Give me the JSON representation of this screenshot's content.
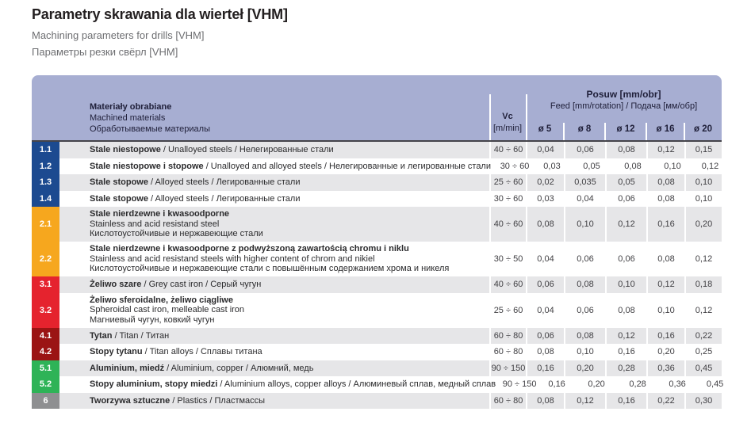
{
  "page": {
    "title": "Parametry skrawania dla wierteł [VHM]",
    "subtitle_en": "Machining parameters for drills [VHM]",
    "subtitle_ru": "Параметры резки свёрл [VHM]"
  },
  "colors": {
    "header_bg": "#a7aed2",
    "stripe": "#e6e6e8",
    "header_rule": "#45444a",
    "group_colors": {
      "1": "#1c4a90",
      "2": "#f6a71e",
      "3": "#e5232e",
      "4": "#9b1414",
      "5": "#2eb357",
      "6": "#8e8f91"
    }
  },
  "table": {
    "header": {
      "materials_pl": "Materiały obrabiane",
      "materials_en": "Machined materials",
      "materials_ru": "Обработываемые материалы",
      "vc_label": "Vc",
      "vc_unit": "[m/min]",
      "posuw_title": "Posuw [mm/obr]",
      "posuw_sub": "Feed [mm/rotation] / Подача [мм/обр]",
      "diameters": [
        "ø 5",
        "ø 8",
        "ø 12",
        "ø 16",
        "ø 20"
      ]
    },
    "rows": [
      {
        "id": "1.1",
        "group": "1",
        "striped": true,
        "multiline": false,
        "pl": "Stale niestopowe",
        "en": "Unalloyed steels",
        "ru": " Нелегированные стали",
        "vc": "40 ÷ 60",
        "values": [
          "0,04",
          "0,06",
          "0,08",
          "0,12",
          "0,15"
        ]
      },
      {
        "id": "1.2",
        "group": "1",
        "striped": false,
        "multiline": false,
        "pl": "Stale niestopowe i stopowe",
        "en": "Unalloyed and alloyed steels",
        "ru": "Нелегированные и легированные стали",
        "vc": "30 ÷ 60",
        "values": [
          "0,03",
          "0,05",
          "0,08",
          "0,10",
          "0,12"
        ]
      },
      {
        "id": "1.3",
        "group": "1",
        "striped": true,
        "multiline": false,
        "pl": "Stale stopowe",
        "en": "Alloyed steels",
        "ru": "Легированные стали",
        "vc": "25 ÷ 60",
        "values": [
          "0,02",
          "0,035",
          "0,05",
          "0,08",
          "0,10"
        ]
      },
      {
        "id": "1.4",
        "group": "1",
        "striped": false,
        "multiline": false,
        "pl": "Stale stopowe",
        "en": "Alloyed steels",
        "ru": "Легированные стали",
        "vc": "30 ÷ 60",
        "values": [
          "0,03",
          "0,04",
          "0,06",
          "0,08",
          "0,10"
        ]
      },
      {
        "id": "2.1",
        "group": "2",
        "striped": true,
        "multiline": true,
        "pl": "Stale nierdzewne i kwasoodporne",
        "en": "Stainless and acid resistand steel",
        "ru": "Кислотоустойчивые и нержавеющие стали",
        "vc": "40 ÷ 60",
        "values": [
          "0,08",
          "0,10",
          "0,12",
          "0,16",
          "0,20"
        ]
      },
      {
        "id": "2.2",
        "group": "2",
        "striped": false,
        "multiline": true,
        "pl": "Stale nierdzewne i kwasoodporne z podwyższoną zawartością chromu i niklu",
        "en": "Stainless and acid resistand steels with higher content of chrom and nikiel",
        "ru": "Кислотоустойчивые и нержавеющие стали с повышённым содержанием хрома и никеля",
        "vc": "30 ÷ 50",
        "values": [
          "0,04",
          "0,06",
          "0,06",
          "0,08",
          "0,12"
        ]
      },
      {
        "id": "3.1",
        "group": "3",
        "striped": true,
        "multiline": false,
        "pl": "Żeliwo szare",
        "en": "Grey cast iron",
        "ru": "Серый чугун",
        "vc": "40 ÷ 60",
        "values": [
          "0,06",
          "0,08",
          "0,10",
          "0,12",
          "0,18"
        ]
      },
      {
        "id": "3.2",
        "group": "3",
        "striped": false,
        "multiline": true,
        "pl": "Żeliwo sferoidalne, żeliwo ciągliwe",
        "en": "Spheroidal cast iron, melleable cast iron",
        "ru": "Магниевый чугун, ковкий чугун",
        "vc": "25 ÷ 60",
        "values": [
          "0,04",
          "0,06",
          "0,08",
          "0,10",
          "0,12"
        ]
      },
      {
        "id": "4.1",
        "group": "4",
        "striped": true,
        "multiline": false,
        "pl": "Tytan",
        "en": "Titan",
        "ru": "Титан",
        "vc": "60 ÷ 80",
        "values": [
          "0,06",
          "0,08",
          "0,12",
          "0,16",
          "0,22"
        ]
      },
      {
        "id": "4.2",
        "group": "4",
        "striped": false,
        "multiline": false,
        "pl": "Stopy tytanu",
        "en": "Titan alloys",
        "ru": "Сплавы титана",
        "vc": "60 ÷ 80",
        "values": [
          "0,08",
          "0,10",
          "0,16",
          "0,20",
          "0,25"
        ]
      },
      {
        "id": "5.1",
        "group": "5",
        "striped": true,
        "multiline": false,
        "pl": "Aluminium, miedź",
        "en": "Aluminium, copper",
        "ru": "Алюмний, медь",
        "vc": "90 ÷ 150",
        "values": [
          "0,16",
          "0,20",
          "0,28",
          "0,36",
          "0,45"
        ]
      },
      {
        "id": "5.2",
        "group": "5",
        "striped": false,
        "multiline": false,
        "pl": "Stopy aluminium, stopy miedzi",
        "en": "Aluminium alloys, copper alloys",
        "ru": "Алюминевый сплав, медный сплав",
        "vc": "90 ÷ 150",
        "values": [
          "0,16",
          "0,20",
          "0,28",
          "0,36",
          "0,45"
        ]
      },
      {
        "id": "6",
        "group": "6",
        "striped": true,
        "multiline": false,
        "pl": "Tworzywa sztuczne",
        "en": "Plastics",
        "ru": "Пластмассы",
        "vc": "60 ÷ 80",
        "values": [
          "0,08",
          "0,12",
          "0,16",
          "0,22",
          "0,30"
        ]
      }
    ]
  }
}
